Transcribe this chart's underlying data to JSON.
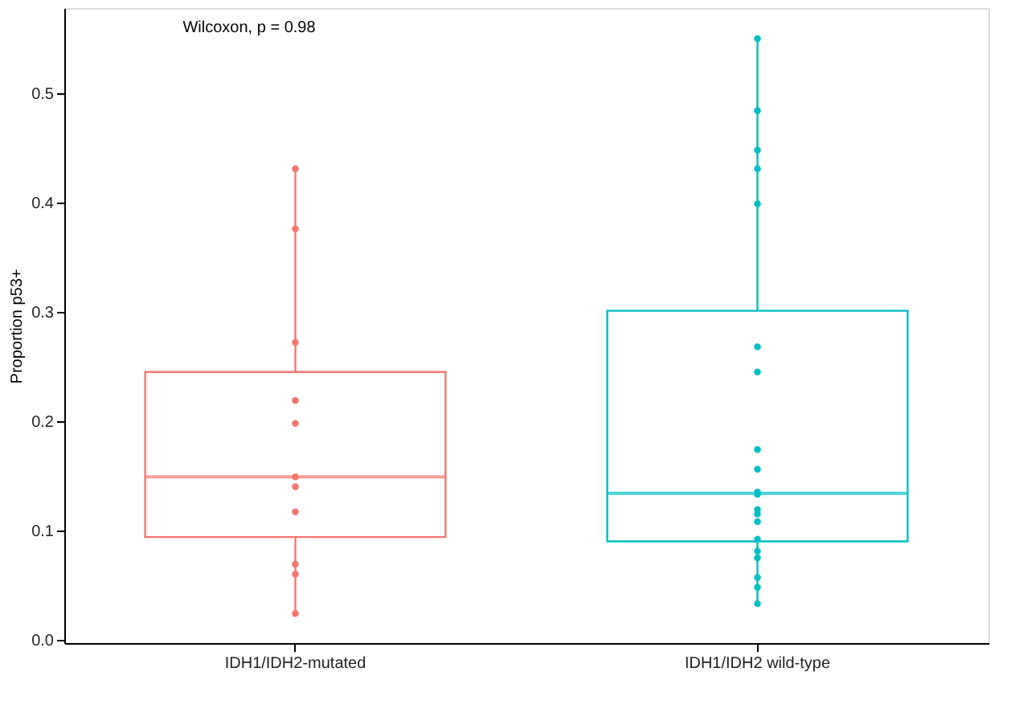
{
  "chart_data": {
    "type": "box",
    "ylabel": "Proportion p53+",
    "categories": [
      "IDH1/IDH2-mutated",
      "IDH1/IDH2 wild-type"
    ],
    "colors": [
      "#f8766d",
      "#00bfc4"
    ],
    "boxes": [
      {
        "low": 0.024,
        "q1": 0.094,
        "median": 0.149,
        "q3": 0.245,
        "high": 0.431
      },
      {
        "low": 0.033,
        "q1": 0.09,
        "median": 0.134,
        "q3": 0.301,
        "high": 0.55
      }
    ],
    "series": [
      {
        "type": "scatter",
        "color": "#f8766d",
        "x": [
          "IDH1/IDH2-mutated",
          "IDH1/IDH2-mutated",
          "IDH1/IDH2-mutated",
          "IDH1/IDH2-mutated",
          "IDH1/IDH2-mutated",
          "IDH1/IDH2-mutated",
          "IDH1/IDH2-mutated",
          "IDH1/IDH2-mutated",
          "IDH1/IDH2-mutated",
          "IDH1/IDH2-mutated",
          "IDH1/IDH2-mutated"
        ],
        "values": [
          0.431,
          0.376,
          0.272,
          0.219,
          0.198,
          0.149,
          0.14,
          0.117,
          0.069,
          0.06,
          0.024
        ]
      },
      {
        "type": "scatter",
        "color": "#00bfc4",
        "x": [
          "IDH1/IDH2 wild-type",
          "IDH1/IDH2 wild-type",
          "IDH1/IDH2 wild-type",
          "IDH1/IDH2 wild-type",
          "IDH1/IDH2 wild-type",
          "IDH1/IDH2 wild-type",
          "IDH1/IDH2 wild-type",
          "IDH1/IDH2 wild-type",
          "IDH1/IDH2 wild-type",
          "IDH1/IDH2 wild-type",
          "IDH1/IDH2 wild-type",
          "IDH1/IDH2 wild-type",
          "IDH1/IDH2 wild-type",
          "IDH1/IDH2 wild-type",
          "IDH1/IDH2 wild-type",
          "IDH1/IDH2 wild-type",
          "IDH1/IDH2 wild-type",
          "IDH1/IDH2 wild-type",
          "IDH1/IDH2 wild-type",
          "IDH1/IDH2 wild-type"
        ],
        "values": [
          0.55,
          0.484,
          0.448,
          0.431,
          0.399,
          0.268,
          0.245,
          0.174,
          0.156,
          0.135,
          0.133,
          0.119,
          0.115,
          0.108,
          0.092,
          0.081,
          0.075,
          0.057,
          0.048,
          0.033
        ]
      }
    ],
    "ylim": [
      -0.003,
      0.578
    ],
    "yticks": [
      {
        "value": 0,
        "label": "0.0"
      },
      0.1,
      0.2,
      0.3,
      0.4,
      0.5
    ],
    "annotations": [
      "Wilcoxon, p = 0.98"
    ],
    "grid": false,
    "marker": "circle"
  }
}
